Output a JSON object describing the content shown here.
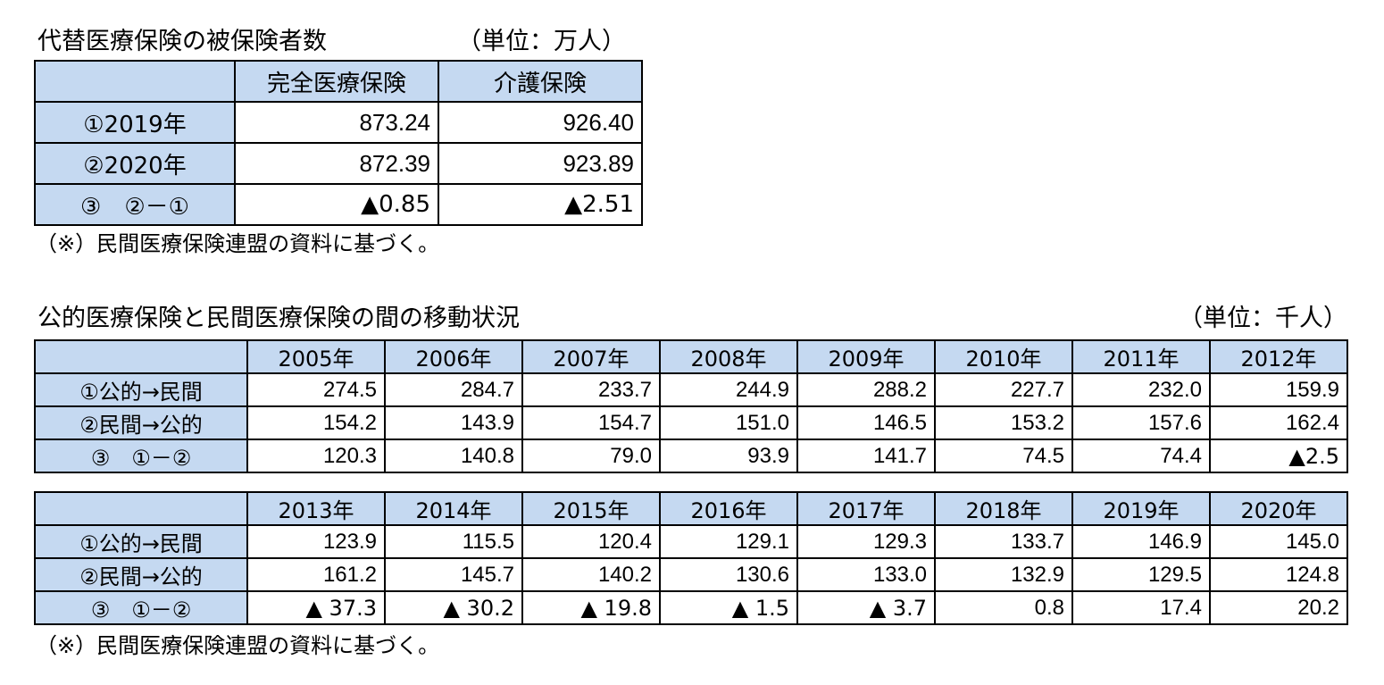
{
  "table1": {
    "title": "代替医療保険の被保険者数",
    "unit": "（単位：万人）",
    "headers": [
      "",
      "完全医療保険",
      "介護保険"
    ],
    "rows": [
      [
        "①2019年",
        "873.24",
        "926.40"
      ],
      [
        "②2020年",
        "872.39",
        "923.89"
      ],
      [
        "③　②－①",
        "▲0.85",
        "▲2.51"
      ]
    ],
    "note": "（※）民間医療保険連盟の資料に基づく。"
  },
  "table2": {
    "title": "公的医療保険と民間医療保険の間の移動状況",
    "unit": "（単位：千人）",
    "headers": [
      "",
      "2005年",
      "2006年",
      "2007年",
      "2008年",
      "2009年",
      "2010年",
      "2011年",
      "2012年"
    ],
    "rows": [
      [
        "①公的→民間",
        "274.5",
        "284.7",
        "233.7",
        "244.9",
        "288.2",
        "227.7",
        "232.0",
        "159.9"
      ],
      [
        "②民間→公的",
        "154.2",
        "143.9",
        "154.7",
        "151.0",
        "146.5",
        "153.2",
        "157.6",
        "162.4"
      ],
      [
        "③　①－②",
        "120.3",
        "140.8",
        "79.0",
        "93.9",
        "141.7",
        "74.5",
        "74.4",
        "▲2.5"
      ]
    ]
  },
  "table3": {
    "headers": [
      "",
      "2013年",
      "2014年",
      "2015年",
      "2016年",
      "2017年",
      "2018年",
      "2019年",
      "2020年"
    ],
    "rows": [
      [
        "①公的→民間",
        "123.9",
        "115.5",
        "120.4",
        "129.1",
        "129.3",
        "133.7",
        "146.9",
        "145.0"
      ],
      [
        "②民間→公的",
        "161.2",
        "145.7",
        "140.2",
        "130.6",
        "133.0",
        "132.9",
        "129.5",
        "124.8"
      ],
      [
        "③　①－②",
        "▲ 37.3",
        "▲ 30.2",
        "▲ 19.8",
        "▲ 1.5",
        "▲ 3.7",
        "0.8",
        "17.4",
        "20.2"
      ]
    ],
    "note": "（※）民間医療保険連盟の資料に基づく。"
  },
  "colors": {
    "header_bg": "#c5d9f1",
    "border": "#000000"
  }
}
